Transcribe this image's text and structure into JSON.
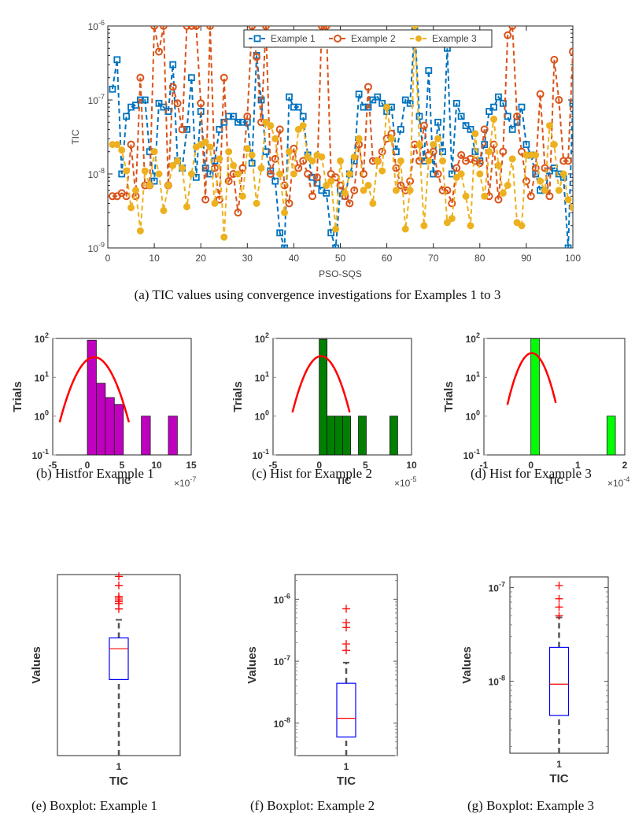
{
  "captions": {
    "a": "(a) TIC values using convergence investigations for Examples 1 to 3",
    "b": "(b) Histfor Example 1",
    "c": "(c) Hist for Example 2",
    "d": "(d) Hist for Example 3",
    "e": "(e) Boxplot: Example 1",
    "f": "(f) Boxplot: Example 2",
    "g": "(g) Boxplot: Example 3"
  },
  "chart_data": [
    {
      "id": "main",
      "type": "line",
      "title": "",
      "xlabel": "PSO-SQS",
      "ylabel": "TIC",
      "xlim": [
        0,
        100
      ],
      "ylim": [
        1e-09,
        1e-06
      ],
      "yscale": "log",
      "xticks": [
        "0",
        "10",
        "20",
        "30",
        "40",
        "50",
        "60",
        "70",
        "80",
        "90",
        "100"
      ],
      "yticks": [
        {
          "exp": "-6",
          "v": 1e-06
        },
        {
          "exp": "-7",
          "v": 1e-07
        },
        {
          "exp": "-8",
          "v": 1e-08
        },
        {
          "exp": "-9",
          "v": 1e-09
        }
      ],
      "legend": {
        "position": "top-center",
        "entries": [
          "Example 1",
          "Example 2",
          "Example 3"
        ]
      },
      "series": [
        {
          "name": "Example 1",
          "color": "#0072BD",
          "marker": "square",
          "values": [
            1.4e-07,
            3.5e-07,
            1e-08,
            6e-08,
            8e-08,
            8.5e-08,
            1e-07,
            1e-07,
            2e-08,
            8e-09,
            9e-08,
            8e-08,
            7e-08,
            3e-07,
            1.5e-08,
            1.2e-08,
            4e-08,
            2e-07,
            9e-09,
            7e-08,
            1.2e-08,
            1e-08,
            1.5e-08,
            4e-08,
            5e-08,
            6e-08,
            6e-08,
            5e-08,
            5e-08,
            5e-08,
            1.4e-08,
            4e-07,
            1e-07,
            2e-08,
            1.1e-08,
            8e-09,
            1.6e-09,
            1e-09,
            1.1e-07,
            8e-08,
            8e-08,
            6e-08,
            1.8e-08,
            9e-09,
            7.5e-09,
            6e-09,
            5.5e-09,
            1.6e-09,
            1e-09,
            6e-09,
            5e-09,
            1e-08,
            1.5e-08,
            1.2e-07,
            8e-08,
            8e-08,
            1e-07,
            1.1e-07,
            9e-08,
            7e-08,
            8e-08,
            2e-08,
            4e-08,
            1e-07,
            9e-08,
            1e-06,
            6e-08,
            1.5e-08,
            2.5e-07,
            1e-08,
            5e-08,
            2e-08,
            5e-07,
            1e-08,
            9e-08,
            6e-08,
            4.5e-08,
            4e-08,
            2e-08,
            1.5e-08,
            2.5e-08,
            7e-08,
            8e-08,
            1.1e-07,
            9e-08,
            6e-08,
            4e-08,
            5e-08,
            8e-08,
            2.5e-08,
            1.8e-08,
            1e-08,
            6e-09,
            6e-09,
            1.1e-08,
            1.2e-08,
            1e-08,
            9e-09,
            1e-09,
            9e-08
          ]
        },
        {
          "name": "Example 2",
          "color": "#D95319",
          "marker": "circle",
          "values": [
            5e-09,
            5e-09,
            5.5e-09,
            5e-09,
            2.5e-08,
            5e-09,
            2e-07,
            7e-09,
            7e-09,
            1e-06,
            4.5e-07,
            1e-06,
            7e-09,
            1.5e-07,
            9e-08,
            4e-08,
            1e-06,
            1e-06,
            1e-06,
            9e-08,
            4.5e-09,
            1e-06,
            1.2e-08,
            4.5e-09,
            2e-07,
            8e-09,
            1e-08,
            3e-09,
            1.2e-08,
            6e-08,
            1e-06,
            3.8e-07,
            5e-08,
            1e-06,
            1e-08,
            1.6e-08,
            4e-08,
            7e-09,
            4e-09,
            2.2e-08,
            1.2e-08,
            1.5e-08,
            1e-08,
            5e-09,
            9e-09,
            1e-06,
            1e-06,
            1e-08,
            9e-09,
            7e-09,
            5e-09,
            4e-09,
            6e-09,
            2.5e-08,
            1e-08,
            1.5e-07,
            1.5e-08,
            1.5e-08,
            2e-08,
            3e-08,
            3.5e-08,
            1.2e-08,
            7e-09,
            6e-09,
            8e-09,
            2.5e-08,
            1.5e-08,
            4.5e-08,
            1.8e-08,
            2e-08,
            1e-08,
            6e-09,
            6e-09,
            4e-09,
            1.2e-08,
            1.8e-08,
            1.5e-08,
            1.6e-08,
            1.5e-08,
            1.4e-08,
            4e-08,
            5e-09,
            2.5e-08,
            4.5e-09,
            2e-08,
            7.5e-07,
            1e-06,
            6e-08,
            2e-08,
            8e-09,
            5e-09,
            1.2e-08,
            1.2e-07,
            1.2e-08,
            5e-09,
            3.5e-07,
            1e-07,
            1.5e-08,
            1.5e-08,
            4.5e-07,
            6e-08
          ]
        },
        {
          "name": "Example 3",
          "color": "#EDB120",
          "marker": "dot",
          "values": [
            2.5e-08,
            2.5e-08,
            2.1e-08,
            1.1e-08,
            3.5e-09,
            6e-09,
            1.7e-09,
            1.1e-08,
            7e-09,
            2e-08,
            1e-08,
            3.2e-09,
            7e-09,
            1.3e-08,
            1.5e-08,
            1.2e-08,
            3.6e-09,
            1e-08,
            2.3e-08,
            2.5e-08,
            2.7e-08,
            2.3e-08,
            4e-09,
            1.6e-08,
            1.4e-09,
            2e-08,
            1.3e-08,
            1e-08,
            5e-09,
            2.2e-08,
            1.8e-08,
            4e-09,
            1.2e-08,
            5e-08,
            4.5e-08,
            3e-08,
            1e-08,
            3e-09,
            2e-08,
            1e-08,
            4e-08,
            4.5e-08,
            1.7e-08,
            1.5e-08,
            1.8e-08,
            1.7e-08,
            7e-09,
            8e-09,
            1.8e-09,
            1.5e-08,
            5.5e-09,
            1e-08,
            1.7e-08,
            3e-08,
            6e-09,
            7e-09,
            4e-09,
            1.5e-08,
            1.1e-08,
            8e-08,
            3e-08,
            6e-09,
            1.5e-08,
            1.8e-09,
            6e-09,
            1e-06,
            2.5e-08,
            2e-09,
            1.5e-08,
            2.5e-08,
            3e-08,
            1.5e-08,
            2.2e-09,
            2.5e-09,
            9e-09,
            1e-08,
            5e-09,
            2e-09,
            3.5e-08,
            1e-08,
            5e-09,
            2e-08,
            5.5e-08,
            1.3e-08,
            5.5e-09,
            7e-09,
            1.6e-08,
            2.2e-09,
            2e-09,
            1.8e-08,
            1.8e-08,
            1.8e-08,
            8e-09,
            6e-09,
            4.5e-08,
            2.5e-08,
            6e-09,
            1e-08,
            4.5e-09,
            3.5e-09
          ]
        }
      ]
    },
    {
      "id": "hist1",
      "type": "bar",
      "title": "",
      "xlabel": "TIC",
      "ylabel": "Trials",
      "x_multiplier": "×10",
      "x_multiplier_exp": "-7",
      "xlim": [
        -5,
        15
      ],
      "ylim": [
        0.1,
        100
      ],
      "yscale": "log",
      "xticks": [
        "-5",
        "0",
        "5",
        "10",
        "15"
      ],
      "yticks": [
        {
          "exp": "2",
          "v": 100
        },
        {
          "exp": "1",
          "v": 10
        },
        {
          "exp": "0",
          "v": 1
        },
        {
          "exp": "-1",
          "v": 0.1
        }
      ],
      "bar_color": "#BF00BF",
      "bins": [
        {
          "x0": 0,
          "x1": 1.3,
          "count": 90
        },
        {
          "x0": 1.3,
          "x1": 2.6,
          "count": 7
        },
        {
          "x0": 2.6,
          "x1": 3.9,
          "count": 3
        },
        {
          "x0": 3.9,
          "x1": 5.2,
          "count": 2
        },
        {
          "x0": 7.8,
          "x1": 9.1,
          "count": 1
        },
        {
          "x0": 11.7,
          "x1": 13.0,
          "count": 1
        }
      ],
      "fit": {
        "color": "#FF0000",
        "mean": 1.0,
        "sigma": 1.8,
        "peak": 33,
        "x_range": [
          -4,
          6
        ]
      }
    },
    {
      "id": "hist2",
      "type": "bar",
      "title": "",
      "xlabel": "TIC",
      "ylabel": "Trials",
      "x_multiplier": "×10",
      "x_multiplier_exp": "-5",
      "xlim": [
        -5,
        10
      ],
      "ylim": [
        0.1,
        100
      ],
      "yscale": "log",
      "xticks": [
        "-5",
        "0",
        "5",
        "10"
      ],
      "yticks": [
        {
          "exp": "2",
          "v": 100
        },
        {
          "exp": "1",
          "v": 10
        },
        {
          "exp": "0",
          "v": 1
        },
        {
          "exp": "-1",
          "v": 0.1
        }
      ],
      "bar_color": "#007F00",
      "bins": [
        {
          "x0": 0,
          "x1": 0.85,
          "count": 95
        },
        {
          "x0": 0.85,
          "x1": 1.7,
          "count": 1
        },
        {
          "x0": 1.7,
          "x1": 2.55,
          "count": 1
        },
        {
          "x0": 2.55,
          "x1": 3.4,
          "count": 1
        },
        {
          "x0": 4.25,
          "x1": 5.1,
          "count": 1
        },
        {
          "x0": 7.65,
          "x1": 8.5,
          "count": 1
        }
      ],
      "fit": {
        "color": "#FF0000",
        "mean": 0.2,
        "sigma": 1.2,
        "peak": 35,
        "x_range": [
          -2.9,
          3.3
        ]
      }
    },
    {
      "id": "hist3",
      "type": "bar",
      "title": "",
      "xlabel": "TIC",
      "ylabel": "Trials",
      "x_multiplier": "×10",
      "x_multiplier_exp": "-4",
      "xlim": [
        -1,
        2
      ],
      "ylim": [
        0.1,
        100
      ],
      "yscale": "log",
      "xticks": [
        "-1",
        "0",
        "1",
        "2"
      ],
      "yticks": [
        {
          "exp": "2",
          "v": 100
        },
        {
          "exp": "1",
          "v": 10
        },
        {
          "exp": "0",
          "v": 1
        },
        {
          "exp": "-1",
          "v": 0.1
        }
      ],
      "bar_color": "#00FF00",
      "bins": [
        {
          "x0": 0,
          "x1": 0.18,
          "count": 99
        },
        {
          "x0": 1.62,
          "x1": 1.8,
          "count": 1
        }
      ],
      "fit": {
        "color": "#FF0000",
        "mean": 0.02,
        "sigma": 0.21,
        "peak": 42,
        "x_range": [
          -0.5,
          0.53
        ]
      }
    },
    {
      "id": "box1",
      "type": "box",
      "xlabel": "TIC",
      "ylabel": "Values",
      "xticks": [
        "1"
      ],
      "yscale": "linear",
      "yticks": [],
      "ylim": [
        0,
        1
      ],
      "stats": {
        "whisker_low": 0.0,
        "q1": 0.42,
        "median": 0.59,
        "q3": 0.65,
        "whisker_high": 0.75
      },
      "outliers": [
        0.81,
        0.84,
        0.85,
        0.86,
        0.87,
        0.88,
        0.94,
        0.99
      ],
      "box_color": "#0000FF",
      "median_color": "#FF0000",
      "outlier_color": "#FF0000"
    },
    {
      "id": "box2",
      "type": "box",
      "xlabel": "TIC",
      "ylabel": "Values",
      "xticks": [
        "1"
      ],
      "yscale": "log",
      "yticks": [
        {
          "exp": "-6",
          "v": 1e-06
        },
        {
          "exp": "-7",
          "v": 1e-07
        },
        {
          "exp": "-8",
          "v": 1e-08
        }
      ],
      "ylim": [
        3e-09,
        2.5e-06
      ],
      "stats": {
        "whisker_low": 3e-09,
        "q1": 6e-09,
        "median": 1.2e-08,
        "q3": 4.4e-08,
        "whisker_high": 9.5e-08
      },
      "outliers": [
        1.5e-07,
        1.9e-07,
        3.5e-07,
        4.2e-07,
        7e-07
      ],
      "box_color": "#0000FF",
      "median_color": "#FF0000",
      "outlier_color": "#FF0000"
    },
    {
      "id": "box3",
      "type": "box",
      "xlabel": "TIC",
      "ylabel": "Values",
      "xticks": [
        "1"
      ],
      "yscale": "log",
      "yticks": [
        {
          "exp": "-7",
          "v": 1e-07
        },
        {
          "exp": "-8",
          "v": 1e-08
        }
      ],
      "ylim": [
        1.7e-09,
        1.3e-07
      ],
      "stats": {
        "whisker_low": 1.7e-09,
        "q1": 4.3e-09,
        "median": 9.3e-09,
        "q3": 2.3e-08,
        "whisker_high": 4.8e-08
      },
      "outliers": [
        5e-08,
        6.2e-08,
        7.6e-08,
        1.05e-07
      ],
      "box_color": "#0000FF",
      "median_color": "#FF0000",
      "outlier_color": "#FF0000"
    }
  ]
}
